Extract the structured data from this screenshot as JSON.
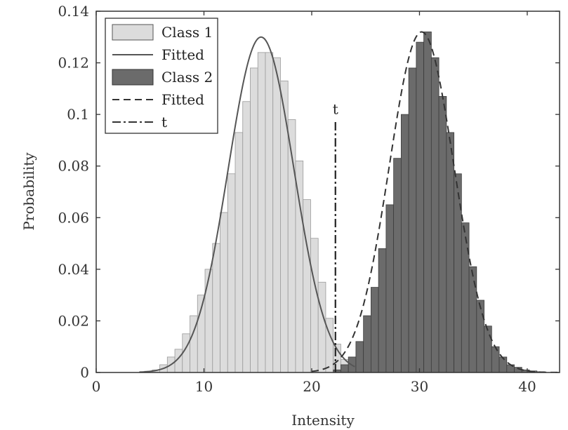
{
  "chart_data": {
    "type": "bar",
    "title": "",
    "xlabel": "Intensity",
    "ylabel": "Probability",
    "xlim": [
      0,
      43
    ],
    "ylim": [
      0,
      0.14
    ],
    "x_ticks": [
      0,
      10,
      20,
      30,
      40
    ],
    "y_ticks": [
      0,
      0.02,
      0.04,
      0.06,
      0.08,
      0.1,
      0.12,
      0.14
    ],
    "y_tick_labels": [
      "0",
      "0.02",
      "0.04",
      "0.06",
      "0.08",
      "0.1",
      "0.12",
      "0.14"
    ],
    "x_tick_labels": [
      "0",
      "10",
      "20",
      "30",
      "40"
    ],
    "grid": false,
    "legend_position": "top-left",
    "legend": [
      "Class 1",
      "Fitted",
      "Class 2",
      "Fitted",
      "t"
    ],
    "threshold": {
      "label": "t",
      "x": 22.2,
      "y_top": 0.098
    },
    "colors": {
      "class1_fill": "#dcdcdc",
      "class1_edge": "#9a9a9a",
      "class2_fill": "#6b6b6b",
      "class2_edge": "#3c3c3c",
      "fit_line": "#555555",
      "axis": "#333333"
    },
    "series": [
      {
        "name": "Class 1",
        "kind": "histogram",
        "bin_width": 0.7,
        "x": [
          4.5,
          5.2,
          5.9,
          6.6,
          7.3,
          8.0,
          8.7,
          9.4,
          10.1,
          10.8,
          11.5,
          12.2,
          12.9,
          13.6,
          14.3,
          15.0,
          15.7,
          16.4,
          17.1,
          17.8,
          18.5,
          19.2,
          19.9,
          20.6,
          21.3,
          22.0,
          22.7,
          23.4
        ],
        "values": [
          0.0005,
          0.001,
          0.003,
          0.006,
          0.009,
          0.015,
          0.022,
          0.03,
          0.04,
          0.05,
          0.062,
          0.077,
          0.093,
          0.105,
          0.118,
          0.124,
          0.124,
          0.122,
          0.113,
          0.098,
          0.082,
          0.067,
          0.052,
          0.035,
          0.021,
          0.011,
          0.005,
          0.002
        ]
      },
      {
        "name": "Fitted",
        "kind": "normal_curve",
        "mean": 15.3,
        "std": 3.05,
        "peak": 0.13,
        "x_range": [
          4,
          24
        ]
      },
      {
        "name": "Class 2",
        "kind": "histogram",
        "bin_width": 0.7,
        "x": [
          22.0,
          22.7,
          23.4,
          24.1,
          24.8,
          25.5,
          26.2,
          26.9,
          27.6,
          28.3,
          29.0,
          29.7,
          30.4,
          31.1,
          31.8,
          32.5,
          33.2,
          33.9,
          34.6,
          35.3,
          36.0,
          36.7,
          37.4,
          38.1,
          38.8,
          39.5,
          40.2,
          40.9
        ],
        "values": [
          0.001,
          0.003,
          0.006,
          0.012,
          0.022,
          0.033,
          0.048,
          0.065,
          0.083,
          0.1,
          0.118,
          0.128,
          0.132,
          0.122,
          0.107,
          0.093,
          0.077,
          0.058,
          0.041,
          0.028,
          0.018,
          0.01,
          0.006,
          0.003,
          0.002,
          0.001,
          0.0006,
          0.0003
        ]
      },
      {
        "name": "Fitted",
        "kind": "normal_curve",
        "mean": 30.2,
        "std": 3.0,
        "peak": 0.132,
        "x_range": [
          20,
          43
        ]
      }
    ]
  }
}
